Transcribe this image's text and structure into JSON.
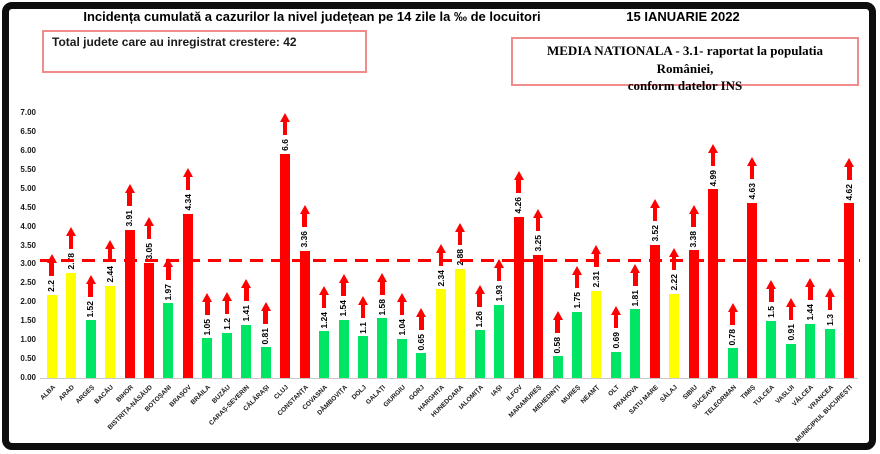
{
  "header": {
    "title": "Incidența cumulată a cazurilor la nivel județean pe 14 zile la ‰ de locuitori",
    "date": "15 IANUARIE 2022",
    "total_box": "Total judete care au inregistrat crestere: 42",
    "media_line1": "MEDIA NATIONALA - 3.1-  raportat la populatia României,",
    "media_line2": "conform datelor INS"
  },
  "chart_data": {
    "type": "bar",
    "title": "Incidența cumulată a cazurilor la nivel județean pe 14 zile la ‰ de locuitori",
    "xlabel": "",
    "ylabel": "",
    "ylim": [
      0,
      7
    ],
    "ytick_step": 0.5,
    "grid": false,
    "legend_position": "none",
    "reference_line": {
      "value": 3.1,
      "label": "media nationala 3.1",
      "color": "#ff0000",
      "style": "dashed"
    },
    "annotation": "red up-arrow above every bar indicating increase",
    "colors": {
      "green": "#00e563",
      "yellow": "#ffff00",
      "red": "#ff0000"
    },
    "color_rule": "green < 2, yellow 2-3, red >= 3",
    "categories": [
      "ALBA",
      "ARAD",
      "ARGEȘ",
      "BACĂU",
      "BIHOR",
      "BISTRIȚA-NĂSĂUD",
      "BOTOȘANI",
      "BRAȘOV",
      "BRĂILA",
      "BUZĂU",
      "CARAȘ-SEVERIN",
      "CĂLĂRAȘI",
      "CLUJ",
      "CONSTANȚA",
      "COVASNA",
      "DÂMBOVIȚA",
      "DOLJ",
      "GALAȚI",
      "GIURGIU",
      "GORJ",
      "HARGHITA",
      "HUNEDOARA",
      "IALOMIȚA",
      "IAȘI",
      "ILFOV",
      "MARAMUREȘ",
      "MEHEDINȚI",
      "MUREȘ",
      "NEAMȚ",
      "OLT",
      "PRAHOVA",
      "SATU MARE",
      "SĂLAJ",
      "SIBIU",
      "SUCEAVA",
      "TELEORMAN",
      "TIMIȘ",
      "TULCEA",
      "VASLUI",
      "VÂLCEA",
      "VRANCEA",
      "MUNICIPIUL BUCUREȘTI"
    ],
    "values": [
      2.2,
      2.78,
      1.52,
      2.44,
      3.91,
      3.05,
      1.97,
      4.34,
      1.05,
      1.2,
      1.41,
      0.81,
      6.6,
      3.36,
      1.24,
      1.54,
      1.1,
      1.58,
      1.04,
      0.65,
      2.34,
      2.88,
      1.26,
      1.93,
      4.26,
      3.25,
      0.58,
      1.75,
      2.31,
      0.69,
      1.81,
      3.52,
      2.22,
      3.38,
      4.99,
      0.78,
      4.63,
      1.5,
      0.91,
      1.44,
      1.3,
      4.62
    ],
    "labels": [
      "2.2",
      "2.78",
      "1.52",
      "2.44",
      "3.91",
      "3.05",
      "1.97",
      "4.34",
      "1.05",
      "1.2",
      "1.41",
      "0.81",
      "6.6",
      "3.36",
      "1.24",
      "1.54",
      "1.1",
      "1.58",
      "1.04",
      "0.65",
      "2.34",
      "2.88",
      "1.26",
      "1.93",
      "4.26",
      "3.25",
      "0.58",
      "1.75",
      "2.31",
      "0.69",
      "1.81",
      "3.52",
      "2.22",
      "3.38",
      "4.99",
      "0.78",
      "4.63",
      "1.5",
      "0.91",
      "1.44",
      "1.3",
      "4.62"
    ],
    "bar_colors": [
      "yellow",
      "yellow",
      "green",
      "yellow",
      "red",
      "red",
      "green",
      "red",
      "green",
      "green",
      "green",
      "green",
      "red",
      "red",
      "green",
      "green",
      "green",
      "green",
      "green",
      "green",
      "yellow",
      "yellow",
      "green",
      "green",
      "red",
      "red",
      "green",
      "green",
      "yellow",
      "green",
      "green",
      "red",
      "yellow",
      "red",
      "red",
      "green",
      "red",
      "green",
      "green",
      "green",
      "green",
      "red"
    ]
  }
}
